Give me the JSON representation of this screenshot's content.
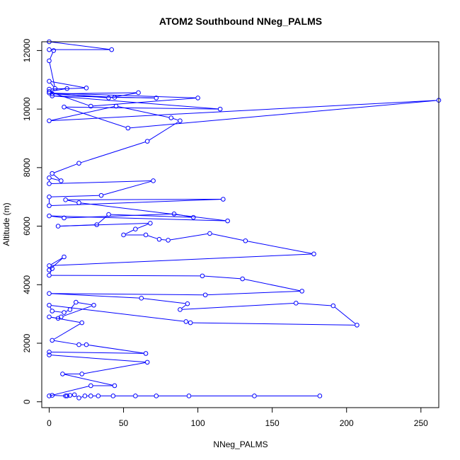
{
  "chart_data": {
    "type": "line",
    "title": "ATOM2 Southbound NNeg_PALMS",
    "xlabel": "NNeg_PALMS",
    "ylabel": "Altitude (m)",
    "xlim": [
      -5,
      262
    ],
    "ylim": [
      -200,
      12300
    ],
    "x_ticks": [
      0,
      50,
      100,
      150,
      200,
      250
    ],
    "y_ticks": [
      0,
      2000,
      4000,
      6000,
      8000,
      10000,
      12000
    ],
    "grid": false,
    "legend": "none",
    "line_style": "lines with open circle markers",
    "series": [
      {
        "color": "#0000ff",
        "points": [
          [
            0,
            12300
          ],
          [
            42,
            12030
          ],
          [
            0,
            12030
          ],
          [
            3,
            12000
          ],
          [
            0,
            11650
          ],
          [
            4,
            10700
          ],
          [
            0,
            10950
          ],
          [
            25,
            10720
          ],
          [
            0,
            10680
          ],
          [
            12,
            10700
          ],
          [
            0,
            10600
          ],
          [
            28,
            10100
          ],
          [
            100,
            10380
          ],
          [
            0,
            10550
          ],
          [
            40,
            10380
          ],
          [
            60,
            10560
          ],
          [
            2,
            10520
          ],
          [
            44,
            10400
          ],
          [
            72,
            10380
          ],
          [
            2,
            10450
          ],
          [
            115,
            10000
          ],
          [
            10,
            10070
          ],
          [
            53,
            9350
          ],
          [
            262,
            10300
          ],
          [
            0,
            9600
          ],
          [
            45,
            10100
          ],
          [
            82,
            9700
          ],
          [
            88,
            9600
          ],
          [
            66,
            8900
          ],
          [
            20,
            8150
          ],
          [
            2,
            7800
          ],
          [
            8,
            7550
          ],
          [
            0,
            7650
          ],
          [
            0,
            7450
          ],
          [
            70,
            7550
          ],
          [
            35,
            7050
          ],
          [
            0,
            7000
          ],
          [
            0,
            6700
          ],
          [
            117,
            6920
          ],
          [
            11,
            6900
          ],
          [
            20,
            6800
          ],
          [
            120,
            6180
          ],
          [
            0,
            6350
          ],
          [
            10,
            6280
          ],
          [
            84,
            6420
          ],
          [
            97,
            6300
          ],
          [
            40,
            6400
          ],
          [
            32,
            6050
          ],
          [
            6,
            6000
          ],
          [
            68,
            6100
          ],
          [
            58,
            5900
          ],
          [
            50,
            5700
          ],
          [
            65,
            5700
          ],
          [
            74,
            5550
          ],
          [
            80,
            5520
          ],
          [
            108,
            5750
          ],
          [
            132,
            5500
          ],
          [
            178,
            5050
          ],
          [
            0,
            4650
          ],
          [
            10,
            4950
          ],
          [
            0,
            4500
          ],
          [
            2,
            4550
          ],
          [
            0,
            4320
          ],
          [
            103,
            4300
          ],
          [
            130,
            4200
          ],
          [
            170,
            3780
          ],
          [
            105,
            3650
          ],
          [
            0,
            3700
          ],
          [
            62,
            3540
          ],
          [
            93,
            3350
          ],
          [
            88,
            3150
          ],
          [
            166,
            3370
          ],
          [
            191,
            3280
          ],
          [
            207,
            2620
          ],
          [
            95,
            2700
          ],
          [
            92,
            2740
          ],
          [
            0,
            3300
          ],
          [
            2,
            3100
          ],
          [
            10,
            3050
          ],
          [
            14,
            3150
          ],
          [
            18,
            3400
          ],
          [
            30,
            3300
          ],
          [
            8,
            2900
          ],
          [
            6,
            2850
          ],
          [
            0,
            2900
          ],
          [
            22,
            2700
          ],
          [
            2,
            2100
          ],
          [
            20,
            1950
          ],
          [
            25,
            1950
          ],
          [
            65,
            1650
          ],
          [
            0,
            1700
          ],
          [
            0,
            1600
          ],
          [
            66,
            1350
          ],
          [
            22,
            950
          ],
          [
            9,
            950
          ],
          [
            44,
            550
          ],
          [
            28,
            550
          ],
          [
            0,
            200
          ],
          [
            2,
            220
          ],
          [
            12,
            200
          ],
          [
            11,
            200
          ],
          [
            14,
            220
          ],
          [
            17,
            240
          ],
          [
            20,
            130
          ],
          [
            24,
            200
          ],
          [
            28,
            200
          ],
          [
            33,
            200
          ],
          [
            43,
            200
          ],
          [
            58,
            200
          ],
          [
            72,
            200
          ],
          [
            94,
            200
          ],
          [
            138,
            200
          ],
          [
            182,
            200
          ]
        ]
      }
    ]
  }
}
